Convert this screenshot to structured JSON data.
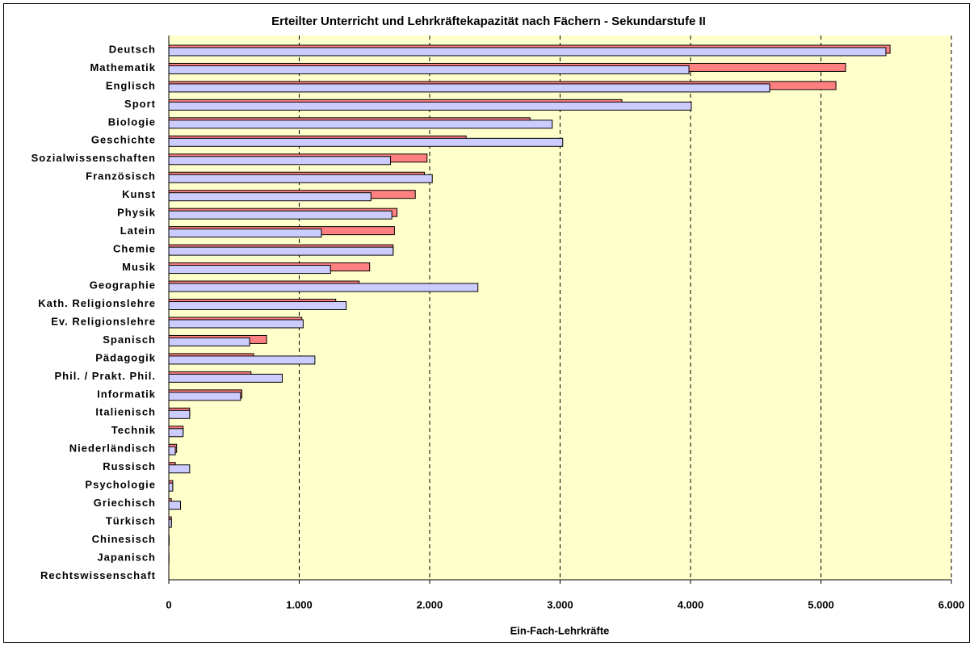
{
  "chart_data": {
    "type": "bar",
    "orientation": "horizontal",
    "title": "Erteilter Unterricht und Lehrkräftekapazität nach Fächern - Sekundarstufe II",
    "xlabel": "Ein-Fach-Lehrkräfte",
    "categories": [
      "Deutsch",
      "Mathematik",
      "Englisch",
      "Sport",
      "Biologie",
      "Geschichte",
      "Sozialwissenschaften",
      "Französisch",
      "Kunst",
      "Physik",
      "Latein",
      "Chemie",
      "Musik",
      "Geographie",
      "Kath. Religionslehre",
      "Ev. Religionslehre",
      "Spanisch",
      "Pädagogik",
      "Phil. / Prakt. Phil.",
      "Informatik",
      "Italienisch",
      "Technik",
      "Niederländisch",
      "Russisch",
      "Psychologie",
      "Griechisch",
      "Türkisch",
      "Chinesisch",
      "Japanisch",
      "Rechtswissenschaft"
    ],
    "series": [
      {
        "color": "#ff8080",
        "values": [
          5530,
          5189,
          5115,
          3474,
          2770,
          2280,
          1980,
          1960,
          1890,
          1750,
          1730,
          1720,
          1540,
          1460,
          1280,
          1020,
          750,
          650,
          630,
          560,
          160,
          110,
          60,
          50,
          30,
          20,
          20,
          2,
          1,
          0
        ]
      },
      {
        "color": "#ccccff",
        "values": [
          5498,
          3988,
          4607,
          4006,
          2940,
          3020,
          1700,
          2020,
          1550,
          1710,
          1170,
          1720,
          1240,
          2370,
          1360,
          1030,
          620,
          1120,
          870,
          550,
          160,
          110,
          50,
          160,
          30,
          90,
          20,
          2,
          1,
          0
        ]
      }
    ],
    "xlim": [
      0,
      6000
    ],
    "xticks": [
      0,
      {
        "value": 1000,
        "label": "1.000"
      },
      {
        "value": 2000,
        "label": "2.000"
      },
      {
        "value": 3000,
        "label": "3.000"
      },
      {
        "value": 4000,
        "label": "4.000"
      },
      {
        "value": 5000,
        "label": "5.000"
      },
      {
        "value": 6000,
        "label": "6.000"
      }
    ],
    "grid": true,
    "plot_background": "#ffffcc"
  }
}
